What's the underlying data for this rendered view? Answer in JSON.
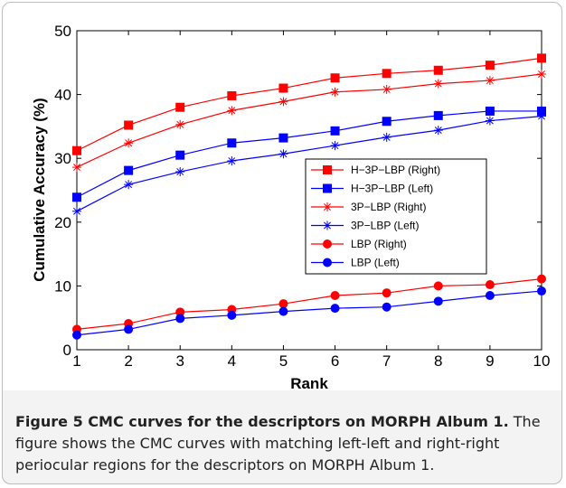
{
  "caption": {
    "title": "Figure 5 CMC curves for the descriptors on MORPH Album 1.",
    "body": "The figure shows the CMC curves with matching left-left and right-right periocular regions for the descriptors on MORPH Album 1."
  },
  "chart_data": {
    "type": "line",
    "title": "",
    "xlabel": "Rank",
    "ylabel": "Cumulative Accuracy (%)",
    "xlim": [
      1,
      10
    ],
    "ylim": [
      0,
      50
    ],
    "x": [
      1,
      2,
      3,
      4,
      5,
      6,
      7,
      8,
      9,
      10
    ],
    "xticks": [
      1,
      2,
      3,
      4,
      5,
      6,
      7,
      8,
      9,
      10
    ],
    "yticks": [
      0,
      10,
      20,
      30,
      40,
      50
    ],
    "grid": false,
    "legend_position": "right-center",
    "series": [
      {
        "name": "H−3P−LBP (Right)",
        "color": "#ff0000",
        "marker": "square",
        "values": [
          31.2,
          35.2,
          38.0,
          39.8,
          41.0,
          42.6,
          43.3,
          43.8,
          44.6,
          45.7
        ]
      },
      {
        "name": "H−3P−LBP (Left)",
        "color": "#0000ff",
        "marker": "square",
        "values": [
          23.9,
          28.1,
          30.5,
          32.4,
          33.2,
          34.3,
          35.8,
          36.7,
          37.4,
          37.4
        ]
      },
      {
        "name": "3P−LBP (Right)",
        "color": "#ff0000",
        "marker": "star",
        "values": [
          28.6,
          32.4,
          35.3,
          37.5,
          38.9,
          40.4,
          40.8,
          41.7,
          42.2,
          43.2
        ]
      },
      {
        "name": "3P−LBP (Left)",
        "color": "#0000ff",
        "marker": "star",
        "values": [
          21.7,
          25.9,
          27.9,
          29.6,
          30.7,
          32.0,
          33.3,
          34.4,
          35.9,
          36.6
        ]
      },
      {
        "name": "LBP (Right)",
        "color": "#ff0000",
        "marker": "circle",
        "values": [
          3.2,
          4.1,
          5.9,
          6.3,
          7.2,
          8.5,
          8.9,
          10.0,
          10.2,
          11.1
        ]
      },
      {
        "name": "LBP (Left)",
        "color": "#0000ff",
        "marker": "circle",
        "values": [
          2.3,
          3.2,
          4.9,
          5.4,
          6.0,
          6.5,
          6.7,
          7.6,
          8.5,
          9.2
        ]
      }
    ]
  }
}
